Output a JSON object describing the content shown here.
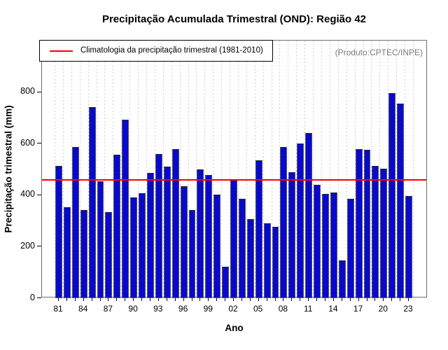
{
  "title": "Precipitação Acumulada Trimestral (OND): Região 42",
  "produto_note": "(Produto:CPTEC/INPE)",
  "legend": {
    "label": "Climatologia da precipitação trimestral (1981-2010)",
    "line_color": "#ff0000"
  },
  "chart_data": {
    "type": "bar",
    "title": "Precipitação Acumulada Trimestral (OND): Região 42",
    "xlabel": "Ano",
    "ylabel": "Precipitação trimestral (mm)",
    "ylim": [
      0,
      1000
    ],
    "yticks": [
      0,
      200,
      400,
      600,
      800
    ],
    "grid": "vertical-dashed",
    "legend_position": "top-left",
    "bar_color": "#0909ce",
    "categories": [
      1981,
      1982,
      1983,
      1984,
      1985,
      1986,
      1987,
      1988,
      1989,
      1990,
      1991,
      1992,
      1993,
      1994,
      1995,
      1996,
      1997,
      1998,
      1999,
      2000,
      2001,
      2002,
      2003,
      2004,
      2005,
      2006,
      2007,
      2008,
      2009,
      2010,
      2011,
      2012,
      2013,
      2014,
      2015,
      2016,
      2017,
      2018,
      2019,
      2020,
      2021,
      2022,
      2023
    ],
    "values": [
      513,
      353,
      586,
      342,
      742,
      453,
      335,
      557,
      692,
      391,
      409,
      486,
      561,
      512,
      579,
      434,
      342,
      500,
      478,
      403,
      122,
      463,
      387,
      306,
      536,
      290,
      278,
      586,
      488,
      601,
      641,
      440,
      405,
      410,
      148,
      387,
      578,
      576,
      513,
      503,
      795,
      755,
      397
    ],
    "xtick_label_step": 3,
    "xtick_labels": [
      "81",
      "84",
      "87",
      "90",
      "93",
      "96",
      "99",
      "02",
      "05",
      "08",
      "11",
      "14",
      "17",
      "20",
      "23"
    ],
    "climatology": {
      "label": "Climatologia da precipitação trimestral (1981-2010)",
      "value": 459,
      "color": "#ff0000",
      "period": "1981-2010"
    }
  }
}
